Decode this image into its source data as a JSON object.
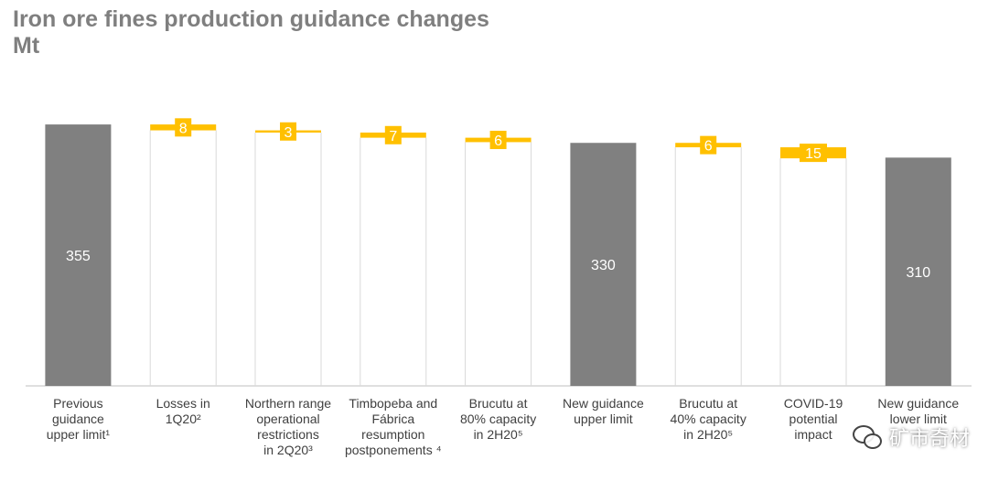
{
  "title": "Iron ore fines production guidance changes",
  "subtitle": "Mt",
  "watermark": "矿市奇材",
  "colors": {
    "total": "#808080",
    "decrease": "#FFC000",
    "connector": "#d9d9d9",
    "label_total": "#ffffff",
    "label_change": "#ffffff",
    "axis_text": "#404040"
  },
  "chart_data": {
    "type": "bar",
    "variant": "waterfall",
    "title": "Iron ore fines production guidance changes",
    "ylabel": "Mt",
    "ylim": [
      0,
      375
    ],
    "grid": false,
    "categories": [
      "Previous guidance upper limit¹",
      "Losses in 1Q20²",
      "Northern range operational restrictions in 2Q20³",
      "Timbopeba and Fábrica resumption postponements⁴",
      "Brucutu at 80% capacity in 2H20⁵",
      "New guidance upper limit",
      "Brucutu at 40% capacity in 2H20⁵",
      "COVID-19 potential impact",
      "New guidance lower limit"
    ],
    "category_lines": [
      [
        "Previous",
        "guidance",
        "upper limit¹"
      ],
      [
        "Losses in",
        "1Q20²"
      ],
      [
        "Northern range",
        "operational",
        "restrictions",
        "in 2Q20³"
      ],
      [
        "Timbopeba and",
        "Fábrica",
        "resumption",
        "postponements ⁴"
      ],
      [
        "Brucutu at",
        "80% capacity",
        "in 2H20⁵"
      ],
      [
        "New guidance",
        "upper limit"
      ],
      [
        "Brucutu at",
        "40% capacity",
        "in 2H20⁵"
      ],
      [
        "COVID-19",
        "potential",
        "impact"
      ],
      [
        "New guidance",
        "lower limit"
      ]
    ],
    "values": [
      355,
      -8,
      -3,
      -7,
      -6,
      330,
      -6,
      -15,
      310
    ],
    "data_labels": [
      "355",
      "8",
      "3",
      "7",
      "6",
      "330",
      "6",
      "15",
      "310"
    ],
    "kinds": [
      "total",
      "change",
      "change",
      "change",
      "change",
      "total",
      "change",
      "change",
      "total"
    ]
  }
}
